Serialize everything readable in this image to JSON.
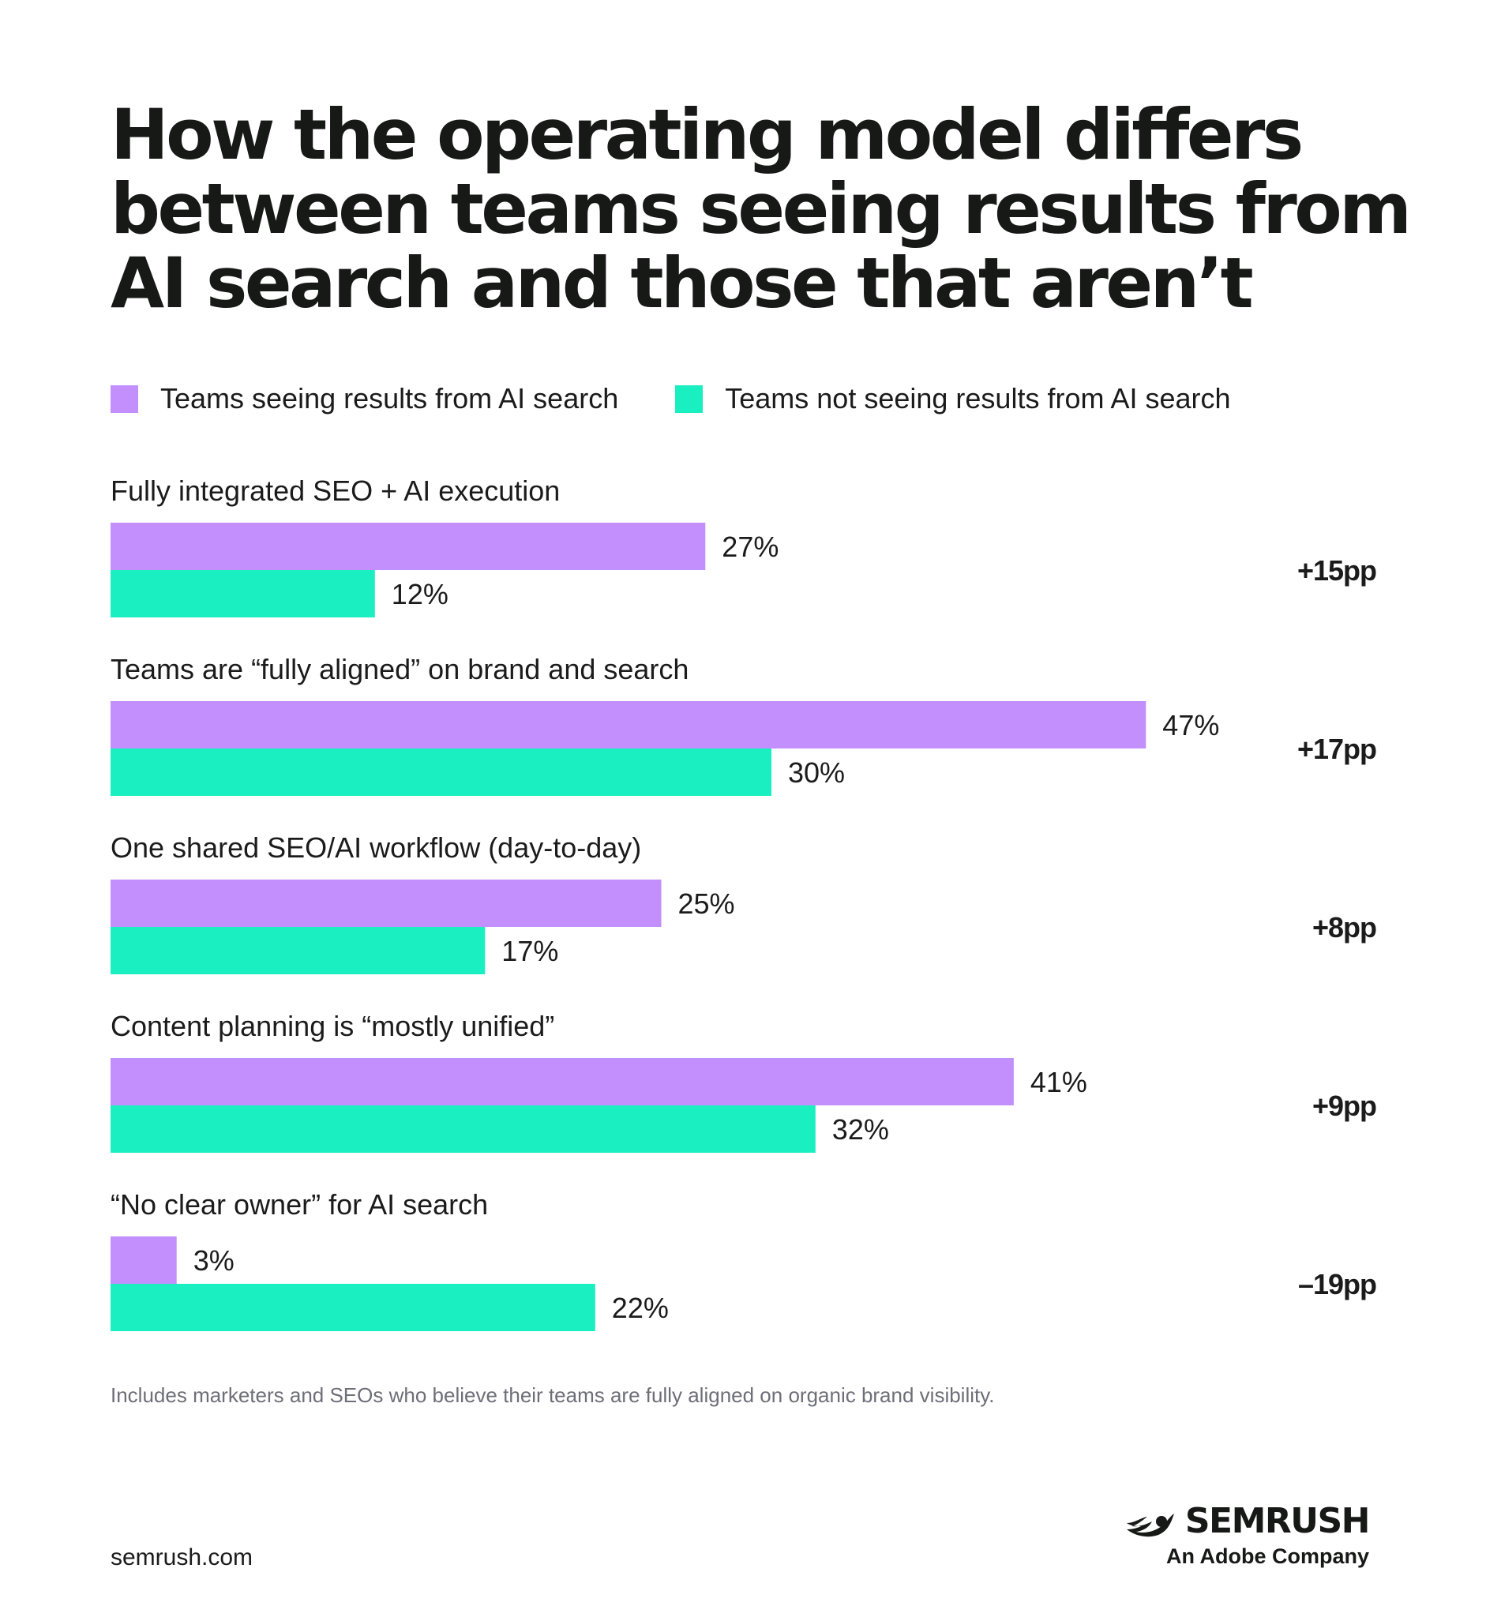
{
  "title_lines": [
    "How the operating model differs",
    "between teams seeing results from",
    "AI search and those that aren’t"
  ],
  "colors": {
    "seeing": "#c28ffd",
    "not_seeing": "#1aefc2",
    "text": "#1b1b1b",
    "footnote": "#6e6e78"
  },
  "chart_data": {
    "type": "bar",
    "orientation": "horizontal",
    "title": "How the operating model differs between teams seeing results from AI search and those that aren’t",
    "categories": [
      "Fully integrated SEO + AI execution",
      "Teams are “fully aligned” on brand and search",
      "One shared SEO/AI workflow (day-to-day)",
      "Content planning is “mostly unified”",
      "“No clear owner” for AI search"
    ],
    "series": [
      {
        "name": "Teams seeing results from AI search",
        "values": [
          27,
          47,
          25,
          41,
          3
        ]
      },
      {
        "name": "Teams not seeing results from AI search",
        "values": [
          12,
          30,
          17,
          32,
          22
        ]
      }
    ],
    "value_labels": [
      [
        "27%",
        "47%",
        "25%",
        "41%",
        "3%"
      ],
      [
        "12%",
        "30%",
        "17%",
        "32%",
        "22%"
      ]
    ],
    "differences": [
      "+15pp",
      "+17pp",
      "+8pp",
      "+9pp",
      "–19pp"
    ],
    "xlim": [
      0,
      100
    ],
    "unit": "%",
    "grid": false,
    "legend_position": "top-left"
  },
  "footnote": "Includes marketers and SEOs who believe their teams are fully aligned on organic brand visibility.",
  "website": "semrush.com",
  "brand": {
    "name": "SEMRUSH",
    "tagline": "An Adobe Company"
  }
}
